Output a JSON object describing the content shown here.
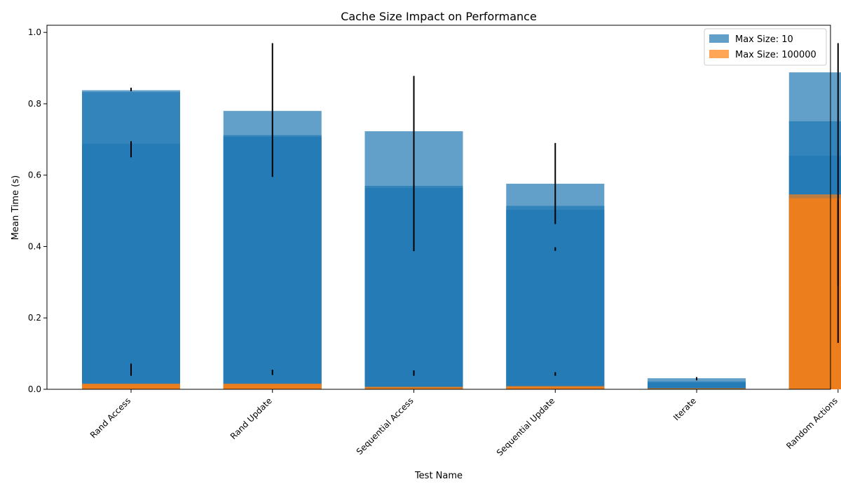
{
  "chart_data": {
    "type": "bar",
    "title": "Cache Size Impact on Performance",
    "xlabel": "Test Name",
    "ylabel": "Mean Time (s)",
    "ylim": [
      0,
      1.02
    ],
    "yticks": [
      "0.0",
      "0.2",
      "0.4",
      "0.6",
      "0.8",
      "1.0"
    ],
    "ytick_values": [
      0,
      0.2,
      0.4,
      0.6,
      0.8,
      1.0
    ],
    "categories": [
      "Rand Access",
      "Rand Update",
      "Sequential Access",
      "Sequential Update",
      "Iterate",
      "Random Actions"
    ],
    "legend_position": "top-right",
    "series": [
      {
        "name": "Max Size: 10",
        "color": "#1f77b4",
        "runs": [
          [
            0.838,
            0.833,
            0.688
          ],
          [
            0.78,
            0.712,
            0.707
          ],
          [
            0.723,
            0.57,
            0.564
          ],
          [
            0.576,
            0.514,
            0.503
          ],
          [
            0.031,
            0.022,
            0.018
          ],
          [
            0.888,
            0.751,
            0.654
          ]
        ],
        "errors": [
          [
            0.835,
            0.845,
            0.65,
            0.695
          ],
          [
            0.595,
            0.97
          ],
          [
            0.387,
            0.878
          ],
          [
            0.463,
            0.69,
            0.388,
            0.398
          ],
          [
            0.027,
            0.034
          ],
          [
            0.13,
            0.97
          ]
        ]
      },
      {
        "name": "Max Size: 100000",
        "color": "#ff7f0e",
        "runs": [
          [
            0.016,
            0.014
          ],
          [
            0.016,
            0.014
          ],
          [
            0.007,
            0.005
          ],
          [
            0.009,
            0.007
          ],
          [
            0.003,
            0.002
          ],
          [
            0.546,
            0.535
          ]
        ],
        "errors": [
          [
            0.038,
            0.072
          ],
          [
            0.04,
            0.055
          ],
          [
            0.038,
            0.053
          ],
          [
            0.038,
            0.048
          ],
          [
            0.025,
            0.033
          ],
          [
            0.29,
            0.53
          ]
        ]
      }
    ]
  }
}
